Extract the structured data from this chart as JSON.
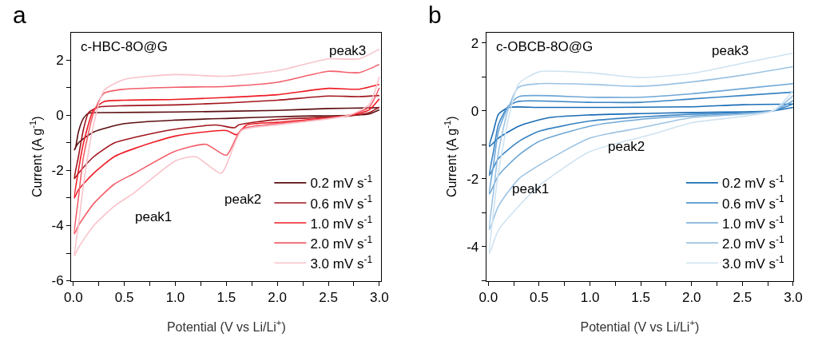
{
  "chart_data": [
    {
      "type": "line",
      "xlabel": "Potential (V vs Li/Li$^{+}$)",
      "ylabel": "Current (A g$^{-1}$)",
      "xlim": [
        -0.02,
        3.02
      ],
      "ylim": [
        -6,
        3
      ],
      "xticks": [
        {
          "value": 0,
          "label": "0.0"
        },
        {
          "value": 0.25,
          "label": null
        },
        {
          "value": 0.5,
          "label": "0.5"
        },
        {
          "value": 0.75,
          "label": null
        },
        {
          "value": 1,
          "label": "1.0"
        },
        {
          "value": 1.25,
          "label": null
        },
        {
          "value": 1.5,
          "label": "1.5"
        },
        {
          "value": 1.75,
          "label": null
        },
        {
          "value": 2,
          "label": "2.0"
        },
        {
          "value": 2.25,
          "label": null
        },
        {
          "value": 2.5,
          "label": "2.5"
        },
        {
          "value": 2.75,
          "label": null
        },
        {
          "value": 3,
          "label": "3.0"
        }
      ],
      "yticks": [
        -6,
        {
          "value": -5,
          "label": null
        },
        -4,
        {
          "value": -3,
          "label": null
        },
        -2,
        {
          "value": -1,
          "label": null
        },
        0,
        {
          "value": 1,
          "label": null
        },
        2
      ],
      "legend": "bottom right",
      "line_style": "solid",
      "annotations": [
        "a",
        "c-HBC-8O@G",
        "peak1",
        "peak2",
        "peak3"
      ],
      "series": [
        {
          "name": "0.2 mV s$^{-1}$",
          "color": "#5c0f12",
          "x": [
            3.0,
            2.9,
            2.7,
            2.35,
            2.0,
            1.6,
            1.0,
            0.5,
            0.2,
            0.05,
            0.01,
            0.02,
            0.05,
            0.1,
            0.15,
            0.3,
            1.0,
            2.0,
            2.5,
            2.9,
            3.0
          ],
          "values": [
            0.2,
            0.05,
            0.0,
            -0.02,
            -0.05,
            -0.1,
            -0.17,
            -0.3,
            -0.6,
            -1.0,
            -1.25,
            -1.2,
            -0.6,
            -0.1,
            0.08,
            0.1,
            0.12,
            0.18,
            0.25,
            0.27,
            0.28
          ]
        },
        {
          "name": "0.6 mV s$^{-1}$",
          "color": "#a0151c",
          "x": [
            3.0,
            2.9,
            2.7,
            2.0,
            1.62,
            1.58,
            1.4,
            1.0,
            0.6,
            0.4,
            0.2,
            0.05,
            0.01,
            0.05,
            0.1,
            0.15,
            0.25,
            0.5,
            1.0,
            1.5,
            2.0,
            2.5,
            2.8,
            3.0
          ],
          "values": [
            0.3,
            0.1,
            -0.02,
            -0.15,
            -0.35,
            -0.45,
            -0.35,
            -0.5,
            -0.8,
            -1.0,
            -1.5,
            -2.1,
            -2.3,
            -1.5,
            -0.5,
            0.1,
            0.3,
            0.35,
            0.38,
            0.45,
            0.55,
            0.7,
            0.68,
            0.72
          ]
        },
        {
          "name": "1.0 mV s$^{-1}$",
          "color": "#ee1c25",
          "x": [
            3.0,
            2.9,
            2.7,
            2.0,
            1.7,
            1.6,
            1.5,
            1.0,
            0.6,
            0.4,
            0.2,
            0.05,
            0.01,
            0.05,
            0.1,
            0.2,
            0.3,
            0.5,
            1.0,
            1.5,
            2.0,
            2.5,
            2.8,
            3.0
          ],
          "values": [
            0.6,
            0.2,
            0.0,
            -0.25,
            -0.35,
            -0.7,
            -0.55,
            -0.75,
            -1.2,
            -1.5,
            -2.1,
            -2.7,
            -3.0,
            -2.0,
            -1.0,
            0.2,
            0.5,
            0.55,
            0.58,
            0.65,
            0.75,
            0.98,
            0.95,
            1.12
          ]
        },
        {
          "name": "2.0 mV s$^{-1}$",
          "color": "#f25f6a",
          "x": [
            3.0,
            2.9,
            2.7,
            2.0,
            1.65,
            1.5,
            1.3,
            1.0,
            0.6,
            0.4,
            0.2,
            0.05,
            0.01,
            0.05,
            0.1,
            0.2,
            0.3,
            0.5,
            1.0,
            1.5,
            2.0,
            2.5,
            2.8,
            3.0
          ],
          "values": [
            1.0,
            0.3,
            0.0,
            -0.3,
            -0.5,
            -1.45,
            -1.05,
            -1.3,
            -2.1,
            -2.5,
            -3.2,
            -4.0,
            -4.3,
            -3.0,
            -1.5,
            0.1,
            0.8,
            0.95,
            1.02,
            1.05,
            1.2,
            1.6,
            1.55,
            1.85
          ]
        },
        {
          "name": "3.0 mV s$^{-1}$",
          "color": "#f9c3ca",
          "x": [
            3.0,
            2.9,
            2.7,
            2.0,
            1.65,
            1.45,
            1.2,
            1.0,
            0.6,
            0.4,
            0.2,
            0.05,
            0.01,
            0.05,
            0.1,
            0.2,
            0.3,
            0.5,
            1.0,
            1.5,
            2.0,
            2.5,
            2.8,
            3.0
          ],
          "values": [
            1.4,
            0.4,
            0.0,
            -0.35,
            -0.55,
            -2.1,
            -1.5,
            -1.65,
            -2.8,
            -3.3,
            -4.0,
            -4.8,
            -5.1,
            -4.0,
            -2.5,
            -0.3,
            0.9,
            1.3,
            1.48,
            1.42,
            1.62,
            2.05,
            2.05,
            2.4
          ]
        }
      ]
    },
    {
      "type": "line",
      "xlabel": "Potential (V vs Li/Li$^{+}$)",
      "ylabel": "Current (A g$^{-1}$)",
      "xlim": [
        -0.02,
        3.0
      ],
      "ylim": [
        -5,
        2.3
      ],
      "xticks": [
        {
          "value": 0,
          "label": "0.0"
        },
        {
          "value": 0.25,
          "label": null
        },
        {
          "value": 0.5,
          "label": "0.5"
        },
        {
          "value": 0.75,
          "label": null
        },
        {
          "value": 1,
          "label": "1.0"
        },
        {
          "value": 1.25,
          "label": null
        },
        {
          "value": 1.5,
          "label": "1.5"
        },
        {
          "value": 1.75,
          "label": null
        },
        {
          "value": 2,
          "label": "2.0"
        },
        {
          "value": 2.25,
          "label": null
        },
        {
          "value": 2.5,
          "label": "2.5"
        },
        {
          "value": 2.75,
          "label": null
        },
        {
          "value": 3,
          "label": "3.0"
        }
      ],
      "yticks": [
        {
          "value": -5,
          "label": null
        },
        -4,
        {
          "value": -3,
          "label": null
        },
        -2,
        {
          "value": -1,
          "label": null
        },
        0,
        {
          "value": 1,
          "label": null
        },
        2
      ],
      "legend": "bottom right",
      "line_style": "solid",
      "annotations": [
        "b",
        "c-OBCB-8O@G",
        "peak1",
        "peak2",
        "peak3"
      ],
      "series": [
        {
          "name": "0.2 mV s$^{-1}$",
          "color": "#1a6db5",
          "x": [
            3.0,
            2.8,
            2.0,
            1.5,
            1.0,
            0.6,
            0.3,
            0.1,
            0.01,
            0.05,
            0.1,
            0.2,
            0.5,
            1.0,
            2.0,
            2.5,
            3.0
          ],
          "values": [
            0.1,
            0.0,
            -0.05,
            -0.08,
            -0.12,
            -0.2,
            -0.45,
            -0.8,
            -1.05,
            -0.6,
            -0.1,
            0.1,
            0.1,
            0.1,
            0.12,
            0.18,
            0.2
          ]
        },
        {
          "name": "0.6 mV s$^{-1}$",
          "color": "#3a84c3",
          "x": [
            3.0,
            2.8,
            2.0,
            1.5,
            1.0,
            0.5,
            0.3,
            0.1,
            0.01,
            0.05,
            0.1,
            0.2,
            0.3,
            1.0,
            1.5,
            2.0,
            2.5,
            3.0
          ],
          "values": [
            0.2,
            0.0,
            -0.1,
            -0.18,
            -0.3,
            -0.6,
            -0.9,
            -1.4,
            -1.9,
            -1.2,
            -0.4,
            0.15,
            0.28,
            0.25,
            0.25,
            0.35,
            0.45,
            0.55
          ]
        },
        {
          "name": "1.0 mV s$^{-1}$",
          "color": "#6fa7d6",
          "x": [
            3.0,
            2.8,
            2.0,
            1.5,
            1.0,
            0.5,
            0.3,
            0.1,
            0.01,
            0.05,
            0.1,
            0.2,
            0.3,
            1.0,
            1.5,
            2.0,
            2.5,
            3.0
          ],
          "values": [
            0.3,
            0.0,
            -0.15,
            -0.25,
            -0.45,
            -0.9,
            -1.3,
            -1.9,
            -2.45,
            -1.6,
            -0.6,
            0.15,
            0.42,
            0.4,
            0.4,
            0.5,
            0.65,
            0.8
          ]
        },
        {
          "name": "2.0 mV s$^{-1}$",
          "color": "#9cc3e3",
          "x": [
            3.0,
            2.8,
            2.0,
            1.5,
            1.0,
            0.5,
            0.3,
            0.1,
            0.01,
            0.05,
            0.1,
            0.2,
            0.3,
            0.5,
            1.0,
            1.5,
            2.0,
            2.5,
            3.0
          ],
          "values": [
            0.45,
            0.0,
            -0.2,
            -0.5,
            -0.8,
            -1.6,
            -2.0,
            -2.8,
            -3.5,
            -2.4,
            -1.2,
            0.1,
            0.7,
            0.8,
            0.78,
            0.72,
            0.85,
            1.05,
            1.3
          ]
        },
        {
          "name": "3.0 mV s$^{-1}$",
          "color": "#cfe3f1",
          "x": [
            3.0,
            2.8,
            2.0,
            1.6,
            1.0,
            0.5,
            0.3,
            0.1,
            0.01,
            0.05,
            0.1,
            0.2,
            0.3,
            0.5,
            1.0,
            1.5,
            2.0,
            2.5,
            3.0
          ],
          "values": [
            0.6,
            0.0,
            -0.35,
            -0.7,
            -1.2,
            -2.2,
            -2.8,
            -3.5,
            -4.2,
            -3.0,
            -1.8,
            -0.2,
            0.8,
            1.15,
            1.12,
            0.98,
            1.1,
            1.4,
            1.7
          ]
        }
      ]
    }
  ]
}
